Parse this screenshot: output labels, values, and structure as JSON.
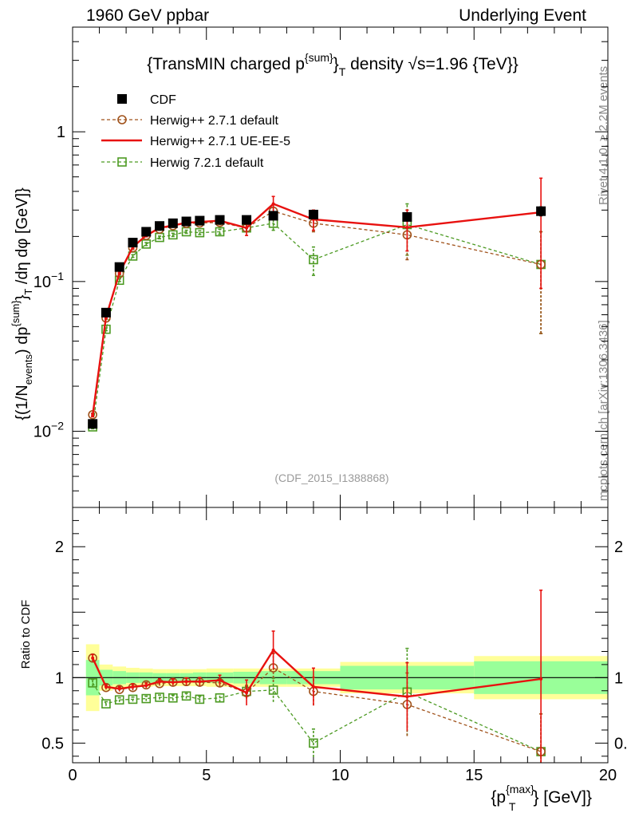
{
  "header": {
    "left": "1960 GeV ppbar",
    "right": "Underlying Event"
  },
  "side_texts": {
    "rivet": "Rivet 4.1.0, ≥ 2.2M events",
    "mcplots": "mcplots.cern.ch [arXiv:1306.3436]"
  },
  "colors": {
    "cdf": "#000000",
    "default271": "#a0521b",
    "ueee5": "#e8110f",
    "herwig721": "#4c9a22",
    "band_outer": "#ffff99",
    "band_inner": "#99ff99"
  },
  "chart_data": {
    "type": "line",
    "title": "{TransMIN charged p^{sum}_T density √s=1.96 {TeV}}",
    "title_parts": {
      "pre": "{TransMIN charged p",
      "sup": "{sum}",
      "close": "}",
      "sub": "T",
      "mid": " density ",
      "root": "√",
      "post": "s=1.96 {TeV}}"
    },
    "watermark": "(CDF_2015_I1388868)",
    "ylabel": "{(1/N_{events}) dp^{sum}_T /dη dφ [GeV]}",
    "ylabel_parts": {
      "a": "{(1/N",
      "b": "events",
      "c": ") dp",
      "d": "{sum}",
      "e": "}",
      "f": "T",
      "g": " /dη  dφ [GeV]}"
    },
    "xlabel": "{p^{max}_T} [GeV]}",
    "xlabel_parts": {
      "a": "{p",
      "b": "{max}",
      "c": "T",
      "d": "} [GeV]}"
    },
    "ratio_ylabel": "Ratio to CDF",
    "xlim": [
      0,
      20
    ],
    "ylim_main": [
      0.0031,
      5.0
    ],
    "ylim_ratio": [
      0.35,
      2.3
    ],
    "x_ticks": [
      0,
      5,
      10,
      15,
      20
    ],
    "x_tick_labels": [
      "0",
      "5",
      "10",
      "15",
      "20"
    ],
    "y_ticks_main_labels": [
      {
        "v": 1,
        "label": "1"
      },
      {
        "v": 0.1,
        "label": "10^{-1}",
        "base": "10",
        "exp": "−1"
      },
      {
        "v": 0.01,
        "label": "10^{-2}",
        "base": "10",
        "exp": "−2"
      }
    ],
    "ratio_ticks": [
      {
        "v": 2,
        "label": "2"
      },
      {
        "v": 1,
        "label": "1"
      },
      {
        "v": 0.5,
        "label": "0.5"
      }
    ],
    "bins": [
      {
        "lo": 0.5,
        "hi": 1.0,
        "inner": 0.135,
        "outer": 0.255
      },
      {
        "lo": 1.0,
        "hi": 1.5,
        "inner": 0.06,
        "outer": 0.1
      },
      {
        "lo": 1.5,
        "hi": 2.0,
        "inner": 0.05,
        "outer": 0.085
      },
      {
        "lo": 2.0,
        "hi": 2.5,
        "inner": 0.04,
        "outer": 0.075
      },
      {
        "lo": 2.5,
        "hi": 3.0,
        "inner": 0.04,
        "outer": 0.07
      },
      {
        "lo": 3.0,
        "hi": 3.5,
        "inner": 0.035,
        "outer": 0.065
      },
      {
        "lo": 3.5,
        "hi": 4.0,
        "inner": 0.035,
        "outer": 0.065
      },
      {
        "lo": 4.0,
        "hi": 4.5,
        "inner": 0.035,
        "outer": 0.065
      },
      {
        "lo": 4.5,
        "hi": 5.0,
        "inner": 0.04,
        "outer": 0.065
      },
      {
        "lo": 5.0,
        "hi": 6.0,
        "inner": 0.04,
        "outer": 0.07
      },
      {
        "lo": 6.0,
        "hi": 7.0,
        "inner": 0.045,
        "outer": 0.07
      },
      {
        "lo": 7.0,
        "hi": 8.0,
        "inner": 0.05,
        "outer": 0.07
      },
      {
        "lo": 8.0,
        "hi": 10.0,
        "inner": 0.05,
        "outer": 0.07
      },
      {
        "lo": 10.0,
        "hi": 15.0,
        "inner": 0.09,
        "outer": 0.12
      },
      {
        "lo": 15.0,
        "hi": 20.0,
        "inner": 0.125,
        "outer": 0.165
      }
    ],
    "series": [
      {
        "name": "CDF",
        "key": "cdf",
        "style": "marker",
        "marker": "filled-square",
        "color": "#000000",
        "x": [
          0.75,
          1.25,
          1.75,
          2.25,
          2.75,
          3.25,
          3.75,
          4.25,
          4.75,
          5.5,
          6.5,
          7.5,
          9.0,
          12.5,
          17.5
        ],
        "y": [
          0.0112,
          0.062,
          0.125,
          0.182,
          0.215,
          0.235,
          0.245,
          0.252,
          0.255,
          0.258,
          0.258,
          0.275,
          0.28,
          0.27,
          0.295
        ],
        "yerr": [
          0.0003,
          0.001,
          0.002,
          0.003,
          0.003,
          0.003,
          0.004,
          0.004,
          0.004,
          0.004,
          0.005,
          0.007,
          0.01,
          0.015,
          0.02
        ],
        "ratio": [
          1,
          1,
          1,
          1,
          1,
          1,
          1,
          1,
          1,
          1,
          1,
          1,
          1,
          1,
          1
        ]
      },
      {
        "name": "Herwig++ 2.7.1 default",
        "key": "default271",
        "style": "dashed",
        "marker": "open-circle",
        "color": "#a0521b",
        "x": [
          0.75,
          1.25,
          1.75,
          2.25,
          2.75,
          3.25,
          3.75,
          4.25,
          4.75,
          5.5,
          6.5,
          7.5,
          9.0,
          12.5,
          17.5
        ],
        "y": [
          0.0129,
          0.057,
          0.113,
          0.168,
          0.203,
          0.224,
          0.236,
          0.244,
          0.246,
          0.248,
          0.228,
          0.295,
          0.245,
          0.205,
          0.13
        ],
        "yerr": [
          0.0003,
          0.001,
          0.002,
          0.004,
          0.004,
          0.004,
          0.005,
          0.006,
          0.007,
          0.008,
          0.012,
          0.03,
          0.03,
          0.065,
          0.085
        ],
        "ratio": [
          1.15,
          0.925,
          0.91,
          0.925,
          0.945,
          0.955,
          0.965,
          0.97,
          0.965,
          0.96,
          0.885,
          1.075,
          0.895,
          0.795,
          0.435
        ]
      },
      {
        "name": "Herwig++ 2.7.1 UE-EE-5",
        "key": "ueee5",
        "style": "solid",
        "marker": "none",
        "color": "#e8110f",
        "x": [
          0.75,
          1.25,
          1.75,
          2.25,
          2.75,
          3.25,
          3.75,
          4.25,
          4.75,
          5.5,
          6.5,
          7.5,
          9.0,
          12.5,
          17.5
        ],
        "y": [
          0.0128,
          0.058,
          0.114,
          0.17,
          0.203,
          0.228,
          0.237,
          0.247,
          0.25,
          0.255,
          0.228,
          0.33,
          0.26,
          0.23,
          0.29
        ],
        "yerr": [
          0.0003,
          0.001,
          0.002,
          0.004,
          0.004,
          0.005,
          0.006,
          0.007,
          0.008,
          0.01,
          0.025,
          0.04,
          0.04,
          0.07,
          0.2
        ],
        "ratio": [
          1.15,
          0.93,
          0.915,
          0.93,
          0.94,
          0.97,
          0.965,
          0.97,
          0.97,
          0.98,
          0.885,
          1.21,
          0.93,
          0.855,
          0.99
        ]
      },
      {
        "name": "Herwig 7.2.1 default",
        "key": "herwig721",
        "style": "dashed",
        "marker": "open-square",
        "color": "#4c9a22",
        "x": [
          0.75,
          1.25,
          1.75,
          2.25,
          2.75,
          3.25,
          3.75,
          4.25,
          4.75,
          5.5,
          6.5,
          7.5,
          9.0,
          12.5,
          17.5
        ],
        "y": [
          0.0107,
          0.048,
          0.102,
          0.148,
          0.178,
          0.197,
          0.205,
          0.215,
          0.212,
          0.215,
          0.228,
          0.245,
          0.14,
          0.24,
          0.13
        ],
        "yerr": [
          0.0003,
          0.001,
          0.002,
          0.003,
          0.004,
          0.004,
          0.005,
          0.005,
          0.006,
          0.008,
          0.012,
          0.025,
          0.03,
          0.09,
          0.085
        ],
        "ratio": [
          0.96,
          0.8,
          0.83,
          0.835,
          0.84,
          0.85,
          0.845,
          0.86,
          0.835,
          0.845,
          0.895,
          0.905,
          0.5,
          0.89,
          0.435
        ]
      }
    ],
    "legend": {
      "placement": "top-left",
      "entries": [
        "CDF",
        "Herwig++ 2.7.1 default",
        "Herwig++ 2.7.1 UE-EE-5",
        "Herwig 7.2.1 default"
      ]
    }
  }
}
